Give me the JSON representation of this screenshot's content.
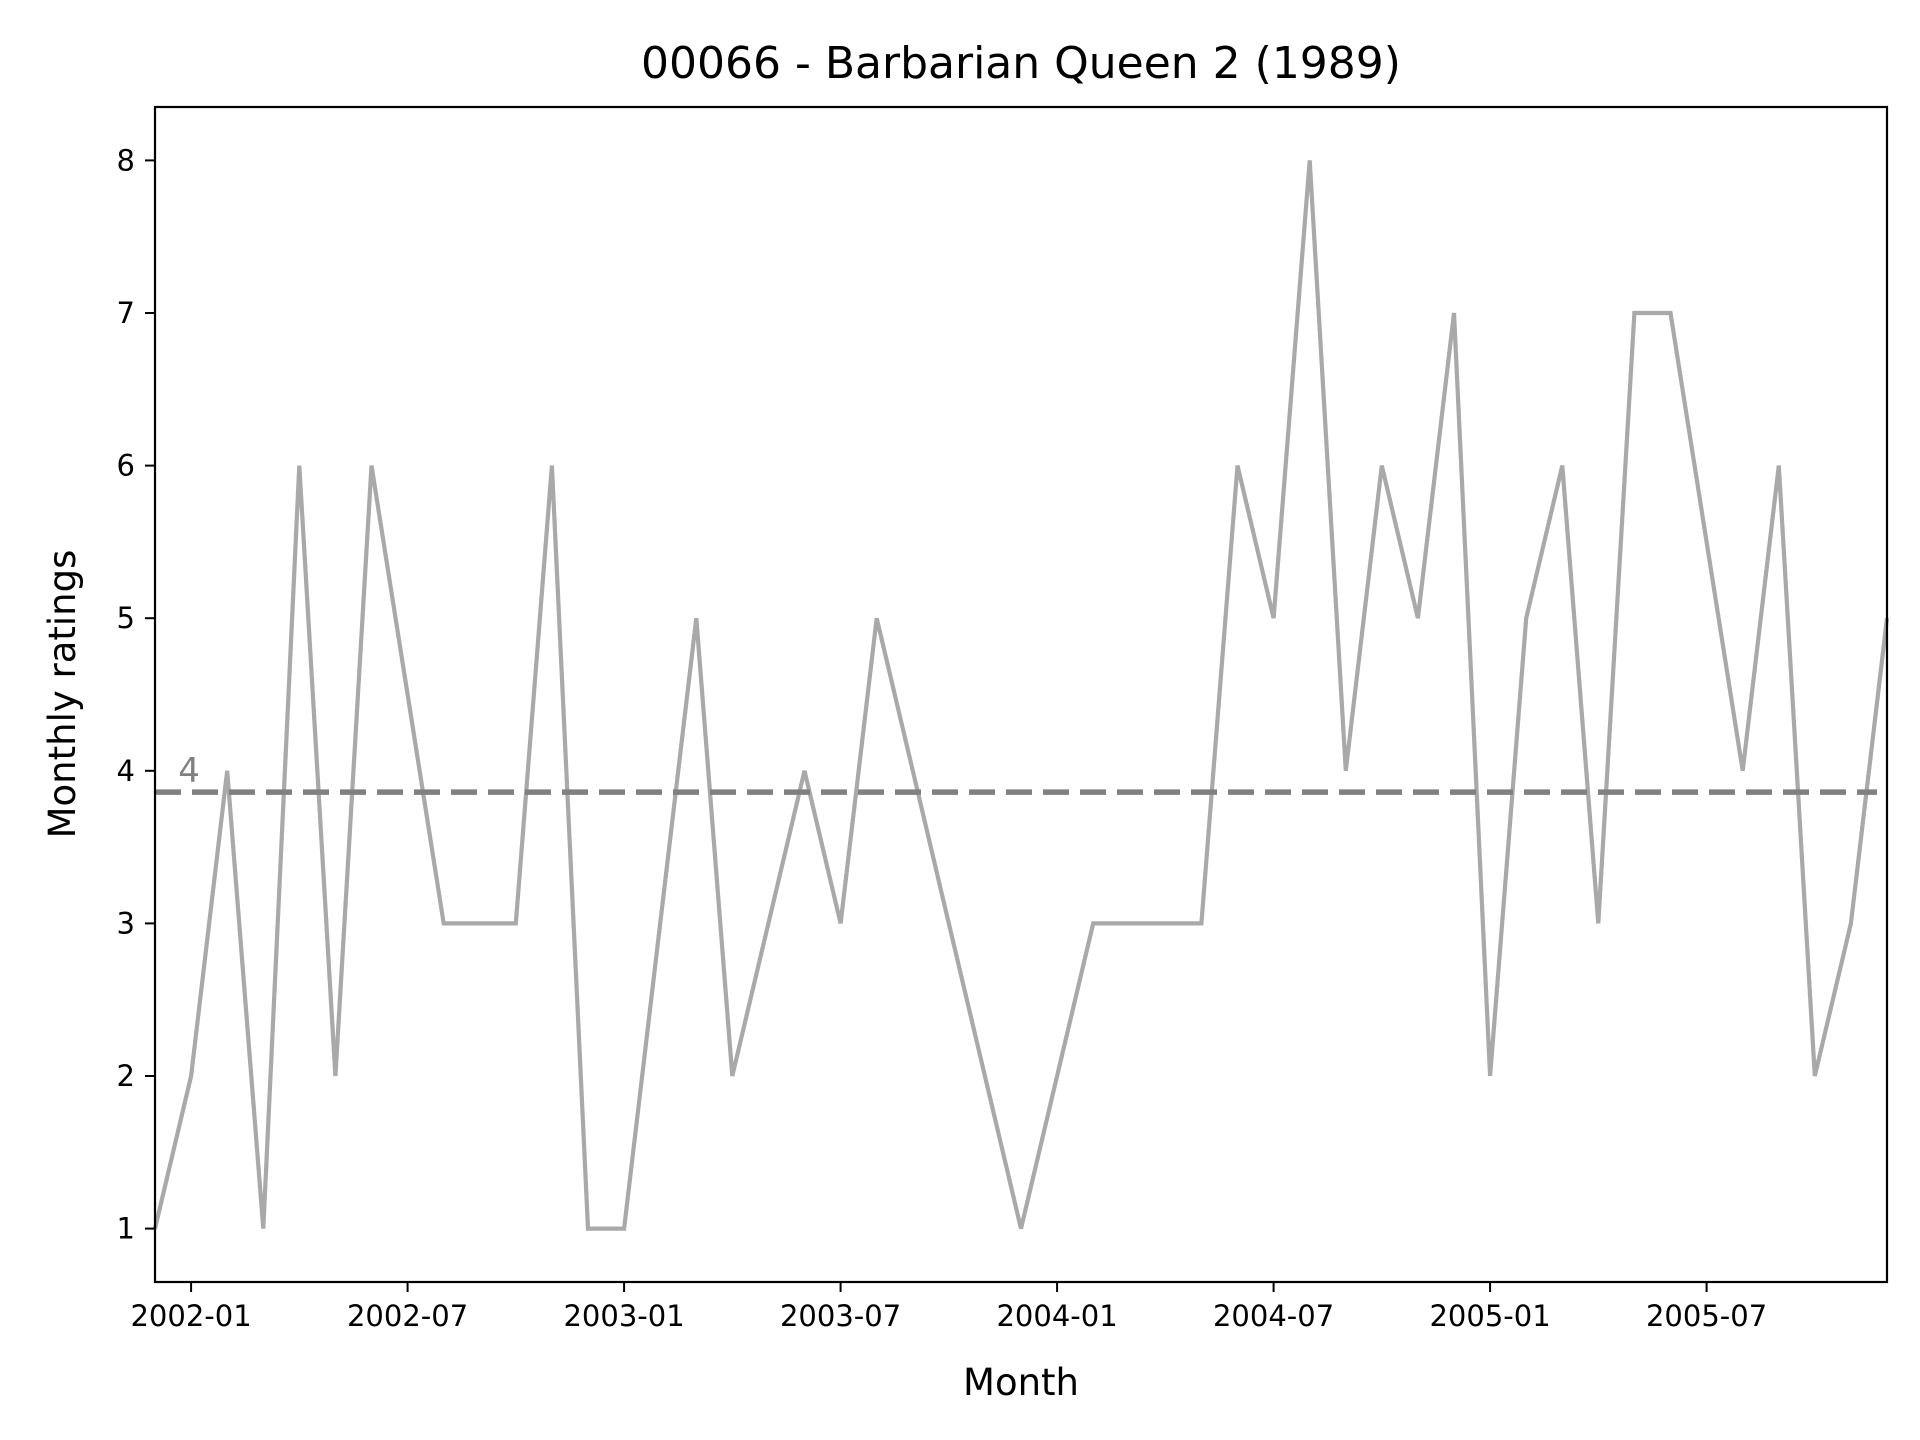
{
  "chart_data": {
    "type": "line",
    "title": "00066 - Barbarian Queen 2 (1989)",
    "xlabel": "Month",
    "ylabel": "Monthly ratings",
    "x": [
      "2001-12",
      "2002-01",
      "2002-02",
      "2002-03",
      "2002-04",
      "2002-05",
      "2002-06",
      "2002-07",
      "2002-08",
      "2002-09",
      "2002-10",
      "2002-11",
      "2002-12",
      "2003-01",
      "2003-02",
      "2003-03",
      "2003-04",
      "2003-05",
      "2003-06",
      "2003-07",
      "2003-08",
      "2003-09",
      "2003-10",
      "2003-11",
      "2003-12",
      "2004-01",
      "2004-02",
      "2004-03",
      "2004-04",
      "2004-05",
      "2004-06",
      "2004-07",
      "2004-08",
      "2004-09",
      "2004-10",
      "2004-11",
      "2004-12",
      "2005-01",
      "2005-02",
      "2005-03",
      "2005-04",
      "2005-05",
      "2005-06",
      "2005-07",
      "2005-08",
      "2005-09",
      "2005-10",
      "2005-11",
      "2005-12"
    ],
    "series": [
      {
        "values": [
          1,
          2,
          4,
          1,
          6,
          2,
          6,
          4.5,
          3,
          3,
          3,
          6,
          1,
          1,
          3,
          5,
          2,
          3,
          4,
          3,
          5,
          4,
          3,
          2,
          1,
          2,
          3,
          3,
          3,
          3,
          6,
          5,
          8,
          4,
          6,
          5,
          7,
          2,
          5,
          6,
          3,
          7,
          7,
          5.5,
          4,
          6,
          2,
          3,
          5
        ],
        "color": "#a9a9a9"
      }
    ],
    "reference_line": {
      "value": 3.86,
      "label": "4",
      "color": "#808080",
      "style": "dashed"
    },
    "xticks": [
      "2002-01",
      "2002-07",
      "2003-01",
      "2003-07",
      "2004-01",
      "2004-07",
      "2005-01",
      "2005-07"
    ],
    "yticks": [
      1,
      2,
      3,
      4,
      5,
      6,
      7,
      8
    ],
    "xlim": [
      "2001-12",
      "2005-12"
    ],
    "ylim": [
      0.65,
      8.35
    ],
    "grid": false,
    "legend": "none"
  }
}
